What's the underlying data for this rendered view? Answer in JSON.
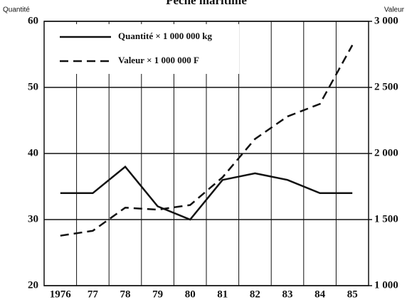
{
  "chart_data": {
    "type": "line",
    "title": "Pêche maritime",
    "ylabel": "Quantité",
    "y2label": "Valeur",
    "categories": [
      "1976",
      "77",
      "78",
      "79",
      "80",
      "81",
      "82",
      "83",
      "84",
      "85"
    ],
    "series": [
      {
        "name": "Quantité × 1 000 000 kg",
        "color": "#111111",
        "dash": false,
        "axis": "y",
        "values": [
          34,
          34,
          38,
          32,
          30,
          36,
          37,
          36,
          34,
          34
        ]
      },
      {
        "name": "Valeur × 1 000 000 F",
        "color": "#111111",
        "dash": true,
        "axis": "y2",
        "values": [
          1378,
          1415,
          1590,
          1575,
          1610,
          1820,
          2110,
          2280,
          2375,
          2820
        ]
      }
    ],
    "ylim": [
      20,
      60
    ],
    "yticks": [
      20,
      30,
      40,
      50,
      60
    ],
    "y2lim": [
      1000,
      3000
    ],
    "y2ticks": [
      {
        "value": 1000,
        "label": "1 000"
      },
      {
        "value": 1500,
        "label": "1 500"
      },
      {
        "value": 2000,
        "label": "2 000"
      },
      {
        "value": 2500,
        "label": "2 500"
      },
      {
        "value": 3000,
        "label": "3 000"
      }
    ],
    "grid": true,
    "legend": "upper left"
  }
}
